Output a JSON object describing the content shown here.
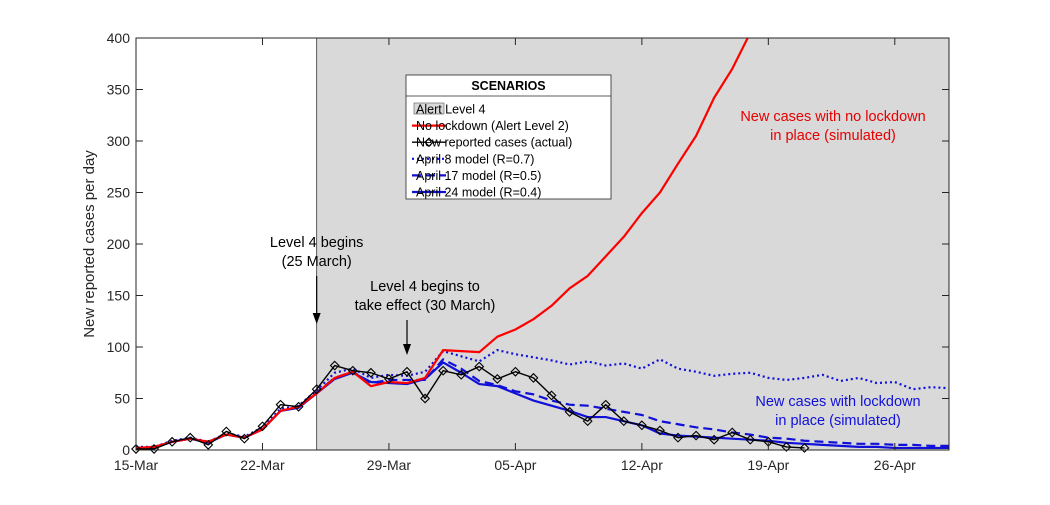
{
  "chart_data": {
    "type": "line",
    "ylabel": "New reported cases per day",
    "ylim": [
      0,
      400
    ],
    "yticks": [
      0,
      50,
      100,
      150,
      200,
      250,
      300,
      350,
      400
    ],
    "xlim": [
      "2020-03-15",
      "2020-04-29"
    ],
    "xticks": [
      {
        "date": "2020-03-15",
        "label": "15-Mar"
      },
      {
        "date": "2020-03-22",
        "label": "22-Mar"
      },
      {
        "date": "2020-03-29",
        "label": "29-Mar"
      },
      {
        "date": "2020-04-05",
        "label": "05-Apr"
      },
      {
        "date": "2020-04-12",
        "label": "12-Apr"
      },
      {
        "date": "2020-04-19",
        "label": "19-Apr"
      },
      {
        "date": "2020-04-26",
        "label": "26-Apr"
      }
    ],
    "shaded_region": {
      "name": "Alert Level 4",
      "start": "2020-03-25",
      "end": "2020-04-29",
      "color": "#d9d9d9"
    },
    "legend": {
      "title": "SCENARIOS",
      "entries": [
        "Alert Level 4",
        "No lockdown (Alert Level 2)",
        "New reported cases (actual)",
        "April 8 model (R=0.7)",
        "April 17 model (R=0.5)",
        "April 24 model (R=0.4)"
      ]
    },
    "annotations": {
      "level4_begins": [
        "Level 4 begins",
        "(25 March)"
      ],
      "level4_effect": [
        "Level 4 begins to",
        "take effect (30 March)"
      ],
      "no_lockdown": [
        "New cases with no lockdown",
        "in place (simulated)"
      ],
      "with_lockdown": [
        "New cases with lockdown",
        "in place (simulated)"
      ]
    },
    "series": [
      {
        "name": "No lockdown (Alert Level 2)",
        "color": "#ff0000",
        "style": "solid",
        "x": [
          "2020-03-15",
          "2020-03-16",
          "2020-03-17",
          "2020-03-18",
          "2020-03-19",
          "2020-03-20",
          "2020-03-21",
          "2020-03-22",
          "2020-03-23",
          "2020-03-24",
          "2020-03-25",
          "2020-03-26",
          "2020-03-27",
          "2020-03-28",
          "2020-03-29",
          "2020-03-30",
          "2020-03-31",
          "2020-04-01",
          "2020-04-02",
          "2020-04-03",
          "2020-04-04",
          "2020-04-05",
          "2020-04-06",
          "2020-04-07",
          "2020-04-08",
          "2020-04-09",
          "2020-04-10",
          "2020-04-11",
          "2020-04-12",
          "2020-04-13",
          "2020-04-14",
          "2020-04-15",
          "2020-04-16",
          "2020-04-17",
          "2020-04-18",
          "2020-04-19"
        ],
        "y": [
          2,
          3,
          8,
          11,
          8,
          15,
          12,
          20,
          38,
          42,
          55,
          70,
          76,
          62,
          66,
          65,
          70,
          97,
          96,
          95,
          110,
          117,
          127,
          140,
          157,
          169,
          188,
          207,
          230,
          250,
          278,
          305,
          342,
          370,
          405,
          440
        ]
      },
      {
        "name": "New reported cases (actual)",
        "color": "#000000",
        "style": "solid-diamond",
        "x": [
          "2020-03-15",
          "2020-03-16",
          "2020-03-17",
          "2020-03-18",
          "2020-03-19",
          "2020-03-20",
          "2020-03-21",
          "2020-03-22",
          "2020-03-23",
          "2020-03-24",
          "2020-03-25",
          "2020-03-26",
          "2020-03-27",
          "2020-03-28",
          "2020-03-29",
          "2020-03-30",
          "2020-03-31",
          "2020-04-01",
          "2020-04-02",
          "2020-04-03",
          "2020-04-04",
          "2020-04-05",
          "2020-04-06",
          "2020-04-07",
          "2020-04-08",
          "2020-04-09",
          "2020-04-10",
          "2020-04-11",
          "2020-04-12",
          "2020-04-13",
          "2020-04-14",
          "2020-04-15",
          "2020-04-16",
          "2020-04-17",
          "2020-04-18",
          "2020-04-19",
          "2020-04-20",
          "2020-04-21"
        ],
        "y": [
          1,
          1,
          8,
          12,
          5,
          18,
          11,
          23,
          44,
          42,
          59,
          82,
          77,
          75,
          69,
          76,
          50,
          77,
          73,
          81,
          69,
          76,
          70,
          53,
          37,
          28,
          44,
          28,
          24,
          19,
          12,
          14,
          10,
          17,
          10,
          8,
          3,
          2
        ]
      },
      {
        "name": "April 8 model (R=0.7)",
        "color": "#1010d8",
        "style": "dotted",
        "x": [
          "2020-03-15",
          "2020-03-16",
          "2020-03-17",
          "2020-03-18",
          "2020-03-19",
          "2020-03-20",
          "2020-03-21",
          "2020-03-22",
          "2020-03-23",
          "2020-03-24",
          "2020-03-25",
          "2020-03-26",
          "2020-03-27",
          "2020-03-28",
          "2020-03-29",
          "2020-03-30",
          "2020-03-31",
          "2020-04-01",
          "2020-04-02",
          "2020-04-03",
          "2020-04-04",
          "2020-04-05",
          "2020-04-06",
          "2020-04-07",
          "2020-04-08",
          "2020-04-09",
          "2020-04-10",
          "2020-04-11",
          "2020-04-12",
          "2020-04-13",
          "2020-04-14",
          "2020-04-15",
          "2020-04-16",
          "2020-04-17",
          "2020-04-18",
          "2020-04-19",
          "2020-04-20",
          "2020-04-21",
          "2020-04-22",
          "2020-04-23",
          "2020-04-24",
          "2020-04-25",
          "2020-04-26",
          "2020-04-27",
          "2020-04-28",
          "2020-04-29"
        ],
        "y": [
          3,
          3,
          9,
          12,
          8,
          16,
          13,
          22,
          40,
          43,
          58,
          75,
          79,
          70,
          73,
          72,
          76,
          96,
          91,
          86,
          97,
          93,
          90,
          87,
          83,
          86,
          82,
          84,
          79,
          88,
          79,
          76,
          72,
          74,
          75,
          70,
          68,
          70,
          73,
          67,
          70,
          65,
          66,
          59,
          61,
          60
        ]
      },
      {
        "name": "April 17 model (R=0.5)",
        "color": "#1010d8",
        "style": "dashed",
        "x": [
          "2020-03-15",
          "2020-03-16",
          "2020-03-17",
          "2020-03-18",
          "2020-03-19",
          "2020-03-20",
          "2020-03-21",
          "2020-03-22",
          "2020-03-23",
          "2020-03-24",
          "2020-03-25",
          "2020-03-26",
          "2020-03-27",
          "2020-03-28",
          "2020-03-29",
          "2020-03-30",
          "2020-03-31",
          "2020-04-01",
          "2020-04-02",
          "2020-04-03",
          "2020-04-04",
          "2020-04-05",
          "2020-04-06",
          "2020-04-07",
          "2020-04-08",
          "2020-04-09",
          "2020-04-10",
          "2020-04-11",
          "2020-04-12",
          "2020-04-13",
          "2020-04-14",
          "2020-04-15",
          "2020-04-16",
          "2020-04-17",
          "2020-04-18",
          "2020-04-19",
          "2020-04-20",
          "2020-04-21",
          "2020-04-22",
          "2020-04-23",
          "2020-04-24",
          "2020-04-25",
          "2020-04-26",
          "2020-04-27",
          "2020-04-28",
          "2020-04-29"
        ],
        "y": [
          2,
          3,
          8,
          11,
          8,
          15,
          12,
          20,
          38,
          42,
          56,
          70,
          76,
          65,
          68,
          68,
          68,
          88,
          79,
          67,
          63,
          57,
          54,
          48,
          44,
          43,
          40,
          37,
          34,
          28,
          25,
          22,
          20,
          17,
          15,
          12,
          11,
          9,
          8,
          7,
          6,
          6,
          5,
          5,
          4,
          4
        ]
      },
      {
        "name": "April 24 model (R=0.4)",
        "color": "#1010d8",
        "style": "solid",
        "x": [
          "2020-03-15",
          "2020-03-16",
          "2020-03-17",
          "2020-03-18",
          "2020-03-19",
          "2020-03-20",
          "2020-03-21",
          "2020-03-22",
          "2020-03-23",
          "2020-03-24",
          "2020-03-25",
          "2020-03-26",
          "2020-03-27",
          "2020-03-28",
          "2020-03-29",
          "2020-03-30",
          "2020-03-31",
          "2020-04-01",
          "2020-04-02",
          "2020-04-03",
          "2020-04-04",
          "2020-04-05",
          "2020-04-06",
          "2020-04-07",
          "2020-04-08",
          "2020-04-09",
          "2020-04-10",
          "2020-04-11",
          "2020-04-12",
          "2020-04-13",
          "2020-04-14",
          "2020-04-15",
          "2020-04-16",
          "2020-04-17",
          "2020-04-18",
          "2020-04-19",
          "2020-04-20",
          "2020-04-21",
          "2020-04-22",
          "2020-04-23",
          "2020-04-24",
          "2020-04-25",
          "2020-04-26",
          "2020-04-27",
          "2020-04-28",
          "2020-04-29"
        ],
        "y": [
          2,
          2,
          8,
          11,
          7,
          15,
          12,
          20,
          38,
          41,
          55,
          69,
          75,
          66,
          65,
          64,
          69,
          85,
          75,
          64,
          62,
          55,
          48,
          43,
          38,
          32,
          32,
          28,
          24,
          16,
          14,
          13,
          12,
          11,
          10,
          9,
          7,
          6,
          5,
          4,
          3,
          3,
          2,
          2,
          2,
          2
        ]
      }
    ]
  }
}
